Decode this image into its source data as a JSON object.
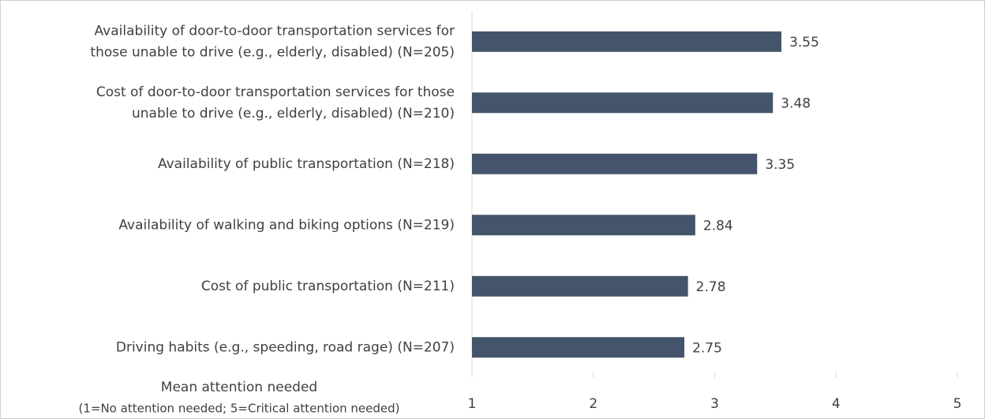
{
  "chart_data": {
    "type": "barh",
    "categories": [
      [
        "Availability of door-to-door transportation services for",
        "those unable to drive (e.g., elderly, disabled) (N=205)"
      ],
      [
        "Cost of door-to-door transportation services for those",
        "unable to drive (e.g., elderly, disabled) (N=210)"
      ],
      [
        "Availability of public transportation (N=218)"
      ],
      [
        "Availability of walking and biking options (N=219)"
      ],
      [
        "Cost of public transportation (N=211)"
      ],
      [
        "Driving habits (e.g., speeding, road rage) (N=207)"
      ]
    ],
    "values": [
      3.55,
      3.48,
      3.35,
      2.84,
      2.78,
      2.75
    ],
    "color": "#44546a",
    "xlabel": [
      "Mean attention needed",
      "(1=No attention needed; 5=Critical attention needed)"
    ],
    "xlim": [
      1,
      5
    ],
    "xticks": [
      1,
      2,
      3,
      4,
      5
    ],
    "grid": false
  }
}
